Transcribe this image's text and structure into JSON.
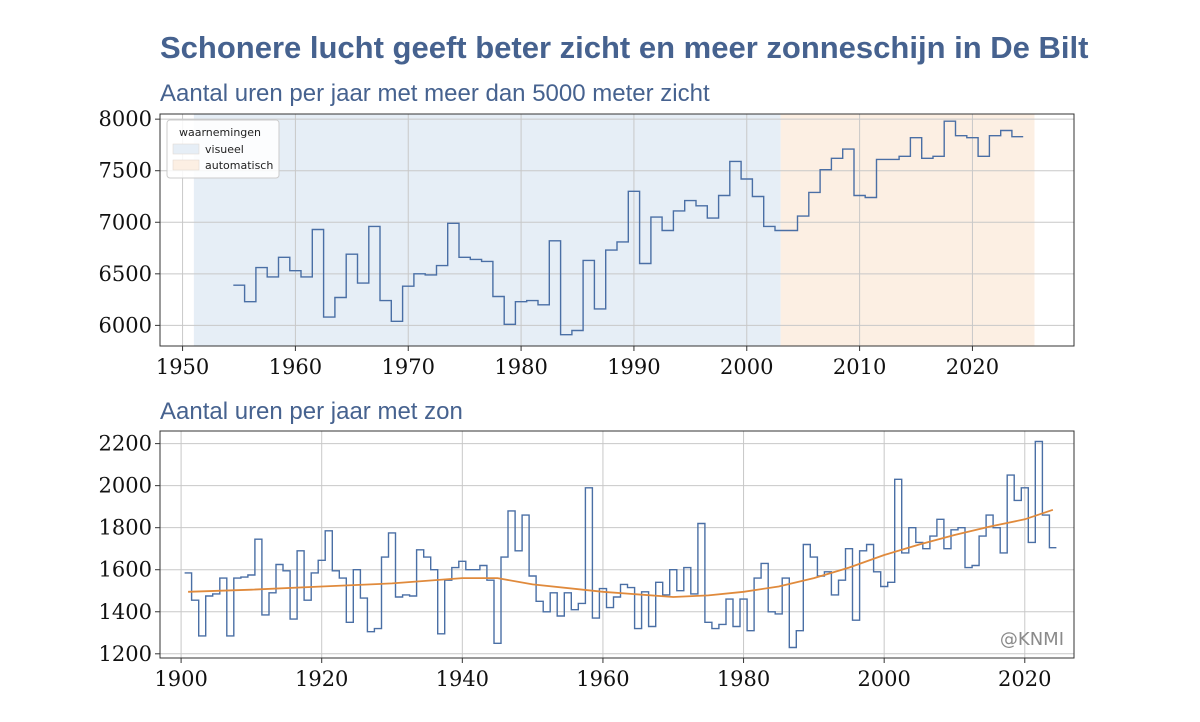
{
  "title": "Schonere lucht geeft beter zicht en meer zonneschijn in De Bilt",
  "watermark": "@KNMI",
  "colors": {
    "title": "#46628f",
    "line": "#4a6fa5",
    "trend": "#e08a3c",
    "visueel_band": "#e6eef6",
    "automatisch_band": "#fcefe3",
    "grid": "#c8c8c8"
  },
  "chart_data": [
    {
      "type": "line",
      "drawstyle": "steps",
      "title": "Aantal uren per jaar met meer dan 5000 meter zicht",
      "xlabel": "",
      "ylabel": "",
      "xlim": [
        1948,
        2029
      ],
      "ylim": [
        5800,
        8050
      ],
      "xticks": [
        1950,
        1960,
        1970,
        1980,
        1990,
        2000,
        2010,
        2020
      ],
      "yticks": [
        6000,
        6500,
        7000,
        7500,
        8000
      ],
      "grid": true,
      "legend": {
        "title": "waarnemingen",
        "placement": "top-left",
        "entries": [
          {
            "label": "visueel",
            "color": "#e6eef6"
          },
          {
            "label": "automatisch",
            "color": "#fcefe3"
          }
        ]
      },
      "shaded_regions": [
        {
          "label": "visueel",
          "from": 1951,
          "to": 2003
        },
        {
          "label": "automatisch",
          "from": 2003,
          "to": 2025.5
        }
      ],
      "x": [
        1955,
        1956,
        1957,
        1958,
        1959,
        1960,
        1961,
        1962,
        1963,
        1964,
        1965,
        1966,
        1967,
        1968,
        1969,
        1970,
        1971,
        1972,
        1973,
        1974,
        1975,
        1976,
        1977,
        1978,
        1979,
        1980,
        1981,
        1982,
        1983,
        1984,
        1985,
        1986,
        1987,
        1988,
        1989,
        1990,
        1991,
        1992,
        1993,
        1994,
        1995,
        1996,
        1997,
        1998,
        1999,
        2000,
        2001,
        2002,
        2003,
        2004,
        2005,
        2006,
        2007,
        2008,
        2009,
        2010,
        2011,
        2012,
        2013,
        2014,
        2015,
        2016,
        2017,
        2018,
        2019,
        2020,
        2021,
        2022,
        2023,
        2024
      ],
      "series": [
        {
          "values": [
            6390,
            6230,
            6560,
            6470,
            6660,
            6530,
            6470,
            6930,
            6080,
            6270,
            6690,
            6410,
            6960,
            6240,
            6040,
            6380,
            6500,
            6490,
            6580,
            6990,
            6660,
            6640,
            6620,
            6280,
            6010,
            6230,
            6240,
            6200,
            6820,
            5910,
            5950,
            6630,
            6160,
            6730,
            6810,
            7300,
            6600,
            7050,
            6920,
            7110,
            7210,
            7160,
            7040,
            7260,
            7590,
            7420,
            7250,
            6960,
            6920,
            6920,
            7060,
            7290,
            7510,
            7620,
            7710,
            7260,
            7240,
            7610,
            7610,
            7640,
            7820,
            7620,
            7640,
            7980,
            7840,
            7820,
            7640,
            7840,
            7890,
            7830
          ]
        }
      ]
    },
    {
      "type": "line",
      "drawstyle": "steps",
      "title": "Aantal uren per jaar met zon",
      "xlabel": "",
      "ylabel": "",
      "xlim": [
        1897,
        2027
      ],
      "ylim": [
        1180,
        2260
      ],
      "xticks": [
        1900,
        1920,
        1940,
        1960,
        1980,
        2000,
        2020
      ],
      "yticks": [
        1200,
        1400,
        1600,
        1800,
        2000,
        2200
      ],
      "grid": true,
      "x": [
        1901,
        1902,
        1903,
        1904,
        1905,
        1906,
        1907,
        1908,
        1909,
        1910,
        1911,
        1912,
        1913,
        1914,
        1915,
        1916,
        1917,
        1918,
        1919,
        1920,
        1921,
        1922,
        1923,
        1924,
        1925,
        1926,
        1927,
        1928,
        1929,
        1930,
        1931,
        1932,
        1933,
        1934,
        1935,
        1936,
        1937,
        1938,
        1939,
        1940,
        1941,
        1942,
        1943,
        1944,
        1945,
        1946,
        1947,
        1948,
        1949,
        1950,
        1951,
        1952,
        1953,
        1954,
        1955,
        1956,
        1957,
        1958,
        1959,
        1960,
        1961,
        1962,
        1963,
        1964,
        1965,
        1966,
        1967,
        1968,
        1969,
        1970,
        1971,
        1972,
        1973,
        1974,
        1975,
        1976,
        1977,
        1978,
        1979,
        1980,
        1981,
        1982,
        1983,
        1984,
        1985,
        1986,
        1987,
        1988,
        1989,
        1990,
        1991,
        1992,
        1993,
        1994,
        1995,
        1996,
        1997,
        1998,
        1999,
        2000,
        2001,
        2002,
        2003,
        2004,
        2005,
        2006,
        2007,
        2008,
        2009,
        2010,
        2011,
        2012,
        2013,
        2014,
        2015,
        2016,
        2017,
        2018,
        2019,
        2020,
        2021,
        2022,
        2023,
        2024
      ],
      "series": [
        {
          "name": "",
          "values": [
            1585,
            1455,
            1285,
            1475,
            1485,
            1560,
            1285,
            1560,
            1565,
            1575,
            1745,
            1385,
            1490,
            1625,
            1595,
            1365,
            1690,
            1455,
            1585,
            1645,
            1785,
            1595,
            1560,
            1350,
            1600,
            1465,
            1305,
            1320,
            1660,
            1775,
            1470,
            1480,
            1475,
            1695,
            1660,
            1600,
            1295,
            1550,
            1610,
            1640,
            1600,
            1600,
            1620,
            1550,
            1250,
            1660,
            1880,
            1690,
            1860,
            1570,
            1450,
            1400,
            1490,
            1380,
            1490,
            1410,
            1440,
            1990,
            1370,
            1510,
            1420,
            1470,
            1530,
            1515,
            1320,
            1495,
            1330,
            1540,
            1480,
            1600,
            1500,
            1610,
            1485,
            1820,
            1350,
            1320,
            1340,
            1460,
            1330,
            1460,
            1310,
            1560,
            1630,
            1400,
            1390,
            1560,
            1230,
            1310,
            1720,
            1660,
            1570,
            1590,
            1480,
            1550,
            1700,
            1360,
            1690,
            1720,
            1590,
            1520,
            1540,
            2030,
            1680,
            1800,
            1730,
            1700,
            1760,
            1840,
            1700,
            1790,
            1800,
            1610,
            1620,
            1760,
            1860,
            1800,
            1680,
            2050,
            1930,
            1990,
            1730,
            2210,
            1860,
            1705
          ]
        },
        {
          "name": "",
          "trend": true,
          "x": [
            1901,
            1910,
            1920,
            1930,
            1940,
            1945,
            1950,
            1960,
            1970,
            1975,
            1980,
            1985,
            1990,
            1995,
            2000,
            2005,
            2010,
            2015,
            2020,
            2024
          ],
          "values": [
            1495,
            1505,
            1520,
            1535,
            1560,
            1560,
            1530,
            1495,
            1470,
            1478,
            1495,
            1520,
            1560,
            1610,
            1670,
            1720,
            1765,
            1805,
            1840,
            1885
          ]
        }
      ]
    }
  ]
}
